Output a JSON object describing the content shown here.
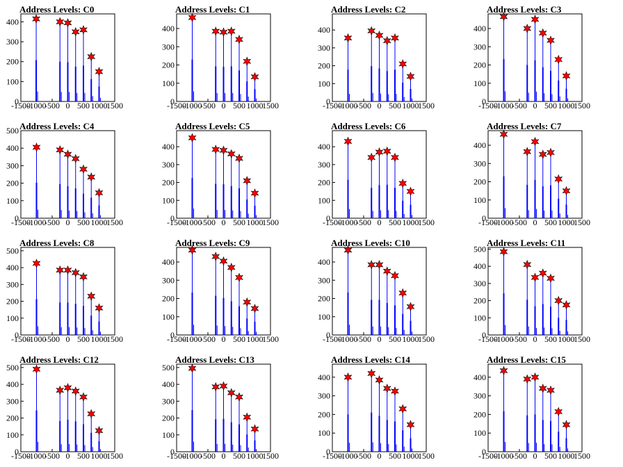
{
  "colors": {
    "histogram": "#0000ff",
    "marker_fill": "#ff0000",
    "marker_stroke": "#000000",
    "axes": "#000000"
  },
  "chart_data": [
    {
      "type": "bar",
      "title": "Address Levels: C0",
      "xlim": [
        -1500,
        1500
      ],
      "ylim": [
        0,
        440
      ],
      "xticks": [
        "-1500",
        "-1000",
        "-500",
        "0",
        "500",
        "1000",
        "1500"
      ],
      "yticks": [
        "0",
        "100",
        "200",
        "300",
        "400"
      ],
      "peaks": {
        "x": [
          -1010,
          -250,
          0,
          250,
          500,
          750,
          1000
        ],
        "y": [
          415,
          400,
          395,
          350,
          360,
          225,
          150
        ]
      }
    },
    {
      "type": "bar",
      "title": "Address Levels: C1",
      "xlim": [
        -1500,
        1500
      ],
      "ylim": [
        0,
        480
      ],
      "xticks": [
        "-1500",
        "-1000",
        "-500",
        "0",
        "500",
        "1000",
        "1500"
      ],
      "yticks": [
        "0",
        "100",
        "200",
        "300",
        "400"
      ],
      "peaks": {
        "x": [
          -1000,
          -250,
          0,
          250,
          500,
          750,
          1000
        ],
        "y": [
          460,
          385,
          380,
          385,
          340,
          220,
          135
        ]
      }
    },
    {
      "type": "bar",
      "title": "Address Levels: C2",
      "xlim": [
        -1500,
        1500
      ],
      "ylim": [
        0,
        490
      ],
      "xticks": [
        "-1500",
        "-1000",
        "-500",
        "0",
        "500",
        "1000",
        "1500"
      ],
      "yticks": [
        "0",
        "100",
        "200",
        "300",
        "400"
      ],
      "peaks": {
        "x": [
          -1000,
          -250,
          0,
          250,
          500,
          750,
          1000
        ],
        "y": [
          355,
          395,
          370,
          340,
          355,
          210,
          140
        ]
      }
    },
    {
      "type": "bar",
      "title": "Address Levels: C3",
      "xlim": [
        -1500,
        1500
      ],
      "ylim": [
        0,
        480
      ],
      "xticks": [
        "-1500",
        "-1000",
        "-500",
        "0",
        "500",
        "1000",
        "1500"
      ],
      "yticks": [
        "0",
        "100",
        "200",
        "300",
        "400"
      ],
      "peaks": {
        "x": [
          -1000,
          -250,
          0,
          250,
          500,
          750,
          1000
        ],
        "y": [
          465,
          400,
          450,
          375,
          335,
          230,
          140
        ]
      }
    },
    {
      "type": "bar",
      "title": "Address Levels: C4",
      "xlim": [
        -1500,
        1500
      ],
      "ylim": [
        0,
        500
      ],
      "xticks": [
        "-1500",
        "-1000",
        "-500",
        "0",
        "500",
        "1000",
        "1500"
      ],
      "yticks": [
        "0",
        "100",
        "200",
        "300",
        "400",
        "500"
      ],
      "peaks": {
        "x": [
          -1000,
          -250,
          0,
          250,
          500,
          750,
          1000
        ],
        "y": [
          405,
          390,
          365,
          340,
          280,
          235,
          145
        ]
      }
    },
    {
      "type": "bar",
      "title": "Address Levels: C5",
      "xlim": [
        -1500,
        1500
      ],
      "ylim": [
        0,
        490
      ],
      "xticks": [
        "-1500",
        "-1000",
        "-500",
        "0",
        "500",
        "1000",
        "1500"
      ],
      "yticks": [
        "0",
        "100",
        "200",
        "300",
        "400"
      ],
      "peaks": {
        "x": [
          -1000,
          -250,
          0,
          250,
          500,
          750,
          1000
        ],
        "y": [
          450,
          385,
          380,
          360,
          335,
          210,
          140
        ]
      }
    },
    {
      "type": "bar",
      "title": "Address Levels: C6",
      "xlim": [
        -1500,
        1500
      ],
      "ylim": [
        0,
        490
      ],
      "xticks": [
        "-1500",
        "-1000",
        "-500",
        "0",
        "500",
        "1000",
        "1500"
      ],
      "yticks": [
        "0",
        "100",
        "200",
        "300",
        "400"
      ],
      "peaks": {
        "x": [
          -1000,
          -250,
          0,
          250,
          500,
          750,
          1000
        ],
        "y": [
          430,
          340,
          370,
          375,
          340,
          195,
          150
        ]
      }
    },
    {
      "type": "bar",
      "title": "Address Levels: C7",
      "xlim": [
        -1500,
        1500
      ],
      "ylim": [
        0,
        480
      ],
      "xticks": [
        "-1500",
        "-1000",
        "-500",
        "0",
        "500",
        "1000",
        "1500"
      ],
      "yticks": [
        "0",
        "100",
        "200",
        "300",
        "400"
      ],
      "peaks": {
        "x": [
          -1000,
          -250,
          0,
          250,
          500,
          750,
          1000
        ],
        "y": [
          460,
          365,
          420,
          350,
          360,
          215,
          150
        ]
      }
    },
    {
      "type": "bar",
      "title": "Address Levels: C8",
      "xlim": [
        -1500,
        1500
      ],
      "ylim": [
        0,
        520
      ],
      "xticks": [
        "-1500",
        "-1000",
        "-500",
        "0",
        "500",
        "1000",
        "1500"
      ],
      "yticks": [
        "0",
        "100",
        "200",
        "300",
        "400",
        "500"
      ],
      "peaks": {
        "x": [
          -1000,
          -250,
          0,
          250,
          500,
          750,
          1000
        ],
        "y": [
          425,
          385,
          385,
          370,
          345,
          230,
          160
        ]
      }
    },
    {
      "type": "bar",
      "title": "Address Levels: C9",
      "xlim": [
        -1500,
        1500
      ],
      "ylim": [
        0,
        480
      ],
      "xticks": [
        "-1500",
        "-1000",
        "-500",
        "0",
        "500",
        "1000",
        "1500"
      ],
      "yticks": [
        "0",
        "100",
        "200",
        "300",
        "400"
      ],
      "peaks": {
        "x": [
          -1000,
          -250,
          0,
          250,
          500,
          750,
          1000
        ],
        "y": [
          465,
          430,
          405,
          370,
          315,
          180,
          145
        ]
      }
    },
    {
      "type": "bar",
      "title": "Address Levels: C10",
      "xlim": [
        -1500,
        1500
      ],
      "ylim": [
        0,
        480
      ],
      "xticks": [
        "-1500",
        "-1000",
        "-500",
        "0",
        "500",
        "1000",
        "1500"
      ],
      "yticks": [
        "0",
        "100",
        "200",
        "300",
        "400"
      ],
      "peaks": {
        "x": [
          -1000,
          -250,
          0,
          250,
          500,
          750,
          1000
        ],
        "y": [
          465,
          385,
          385,
          350,
          325,
          230,
          155
        ]
      }
    },
    {
      "type": "bar",
      "title": "Address Levels: C11",
      "xlim": [
        -1500,
        1500
      ],
      "ylim": [
        0,
        510
      ],
      "xticks": [
        "-1500",
        "-1000",
        "-500",
        "0",
        "500",
        "1000",
        "1500"
      ],
      "yticks": [
        "0",
        "100",
        "200",
        "300",
        "400",
        "500"
      ],
      "peaks": {
        "x": [
          -1000,
          -250,
          0,
          250,
          500,
          750,
          1000
        ],
        "y": [
          485,
          410,
          335,
          360,
          330,
          200,
          175
        ]
      }
    },
    {
      "type": "bar",
      "title": "Address Levels: C12",
      "xlim": [
        -1500,
        1500
      ],
      "ylim": [
        0,
        520
      ],
      "xticks": [
        "-1500",
        "-1000",
        "-500",
        "0",
        "500",
        "1000",
        "1500"
      ],
      "yticks": [
        "0",
        "100",
        "200",
        "300",
        "400",
        "500"
      ],
      "peaks": {
        "x": [
          -1000,
          -250,
          0,
          250,
          500,
          750,
          1000
        ],
        "y": [
          490,
          365,
          380,
          360,
          325,
          225,
          125
        ]
      }
    },
    {
      "type": "bar",
      "title": "Address Levels: C13",
      "xlim": [
        -1500,
        1500
      ],
      "ylim": [
        0,
        520
      ],
      "xticks": [
        "-1500",
        "-1000",
        "-500",
        "0",
        "500",
        "1000",
        "1500"
      ],
      "yticks": [
        "0",
        "100",
        "200",
        "300",
        "400",
        "500"
      ],
      "peaks": {
        "x": [
          -1000,
          -250,
          0,
          250,
          500,
          750,
          1000
        ],
        "y": [
          495,
          385,
          390,
          350,
          325,
          205,
          135
        ]
      }
    },
    {
      "type": "bar",
      "title": "Address Levels: C14",
      "xlim": [
        -1500,
        1500
      ],
      "ylim": [
        0,
        470
      ],
      "xticks": [
        "-1500",
        "-1000",
        "-500",
        "0",
        "500",
        "1000",
        "1500"
      ],
      "yticks": [
        "0",
        "100",
        "200",
        "300",
        "400"
      ],
      "peaks": {
        "x": [
          -1000,
          -250,
          0,
          250,
          500,
          750,
          1000
        ],
        "y": [
          400,
          420,
          385,
          340,
          325,
          230,
          145
        ]
      }
    },
    {
      "type": "bar",
      "title": "Address Levels: C15",
      "xlim": [
        -1500,
        1500
      ],
      "ylim": [
        0,
        470
      ],
      "xticks": [
        "-1500",
        "-1000",
        "-500",
        "0",
        "500",
        "1000",
        "1500"
      ],
      "yticks": [
        "0",
        "100",
        "200",
        "300",
        "400"
      ],
      "peaks": {
        "x": [
          -1000,
          -250,
          0,
          250,
          500,
          750,
          1000
        ],
        "y": [
          435,
          390,
          400,
          340,
          330,
          215,
          145
        ]
      }
    }
  ]
}
